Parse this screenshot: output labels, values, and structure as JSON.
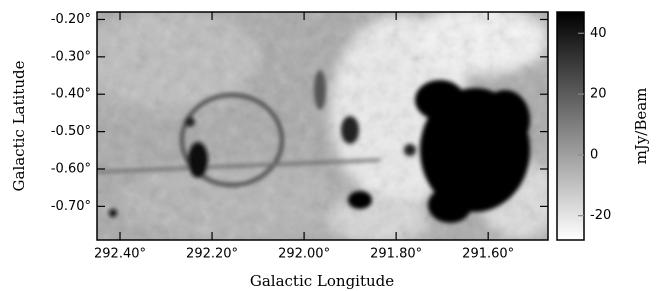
{
  "chart_data": {
    "type": "image",
    "xlabel": "Galactic Longitude",
    "ylabel": "Galactic Latitude",
    "xlim": [
      292.45,
      291.47
    ],
    "ylim": [
      -0.79,
      -0.18
    ],
    "xticks": [
      {
        "value": 292.4,
        "label": "292.40°"
      },
      {
        "value": 292.2,
        "label": "292.20°"
      },
      {
        "value": 292.0,
        "label": "292.00°"
      },
      {
        "value": 291.8,
        "label": "291.80°"
      },
      {
        "value": 291.6,
        "label": "291.60°"
      }
    ],
    "yticks": [
      {
        "value": -0.2,
        "label": "-0.20°"
      },
      {
        "value": -0.3,
        "label": "-0.30°"
      },
      {
        "value": -0.4,
        "label": "-0.40°"
      },
      {
        "value": -0.5,
        "label": "-0.50°"
      },
      {
        "value": -0.6,
        "label": "-0.60°"
      },
      {
        "value": -0.7,
        "label": "-0.70°"
      }
    ],
    "colorbar": {
      "label": "mJy/Beam",
      "lim": [
        -28,
        47
      ],
      "ticks": [
        40,
        20,
        0,
        -20
      ],
      "colors": [
        "#ffffff",
        "#000000"
      ]
    }
  }
}
